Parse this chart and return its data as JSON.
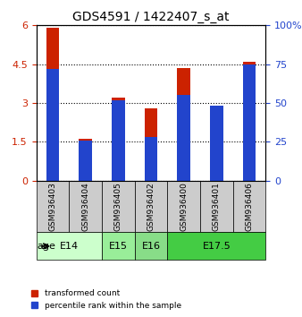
{
  "title": "GDS4591 / 1422407_s_at",
  "samples": [
    "GSM936403",
    "GSM936404",
    "GSM936405",
    "GSM936402",
    "GSM936400",
    "GSM936401",
    "GSM936406"
  ],
  "transformed_count": [
    5.9,
    1.6,
    3.2,
    2.8,
    4.35,
    2.9,
    4.6
  ],
  "percentile_rank": [
    72,
    26,
    52,
    28,
    55,
    48,
    75
  ],
  "age_groups": [
    {
      "label": "E14",
      "span": [
        0,
        2
      ],
      "color": "#ccffcc"
    },
    {
      "label": "E15",
      "span": [
        2,
        3
      ],
      "color": "#99ee99"
    },
    {
      "label": "E16",
      "span": [
        3,
        4
      ],
      "color": "#77dd77"
    },
    {
      "label": "E17.5",
      "span": [
        4,
        7
      ],
      "color": "#44cc44"
    }
  ],
  "ylim_left": [
    0,
    6
  ],
  "ylim_right": [
    0,
    100
  ],
  "yticks_left": [
    0,
    1.5,
    3,
    4.5,
    6
  ],
  "yticks_right": [
    0,
    25,
    50,
    75,
    100
  ],
  "ytick_labels_left": [
    "0",
    "1.5",
    "3",
    "4.5",
    "6"
  ],
  "ytick_labels_right": [
    "0",
    "25",
    "50",
    "75",
    "100%"
  ],
  "bar_color_red": "#cc2200",
  "bar_color_blue": "#2244cc",
  "bar_width": 0.4,
  "grid_color": "#000000",
  "bg_plot": "#ffffff",
  "bg_sample": "#cccccc",
  "bg_age_light": "#ccffcc",
  "bg_age_medium": "#99dd99",
  "bg_age_dark": "#44bb44",
  "legend_red_label": "transformed count",
  "legend_blue_label": "percentile rank within the sample",
  "age_label": "age"
}
